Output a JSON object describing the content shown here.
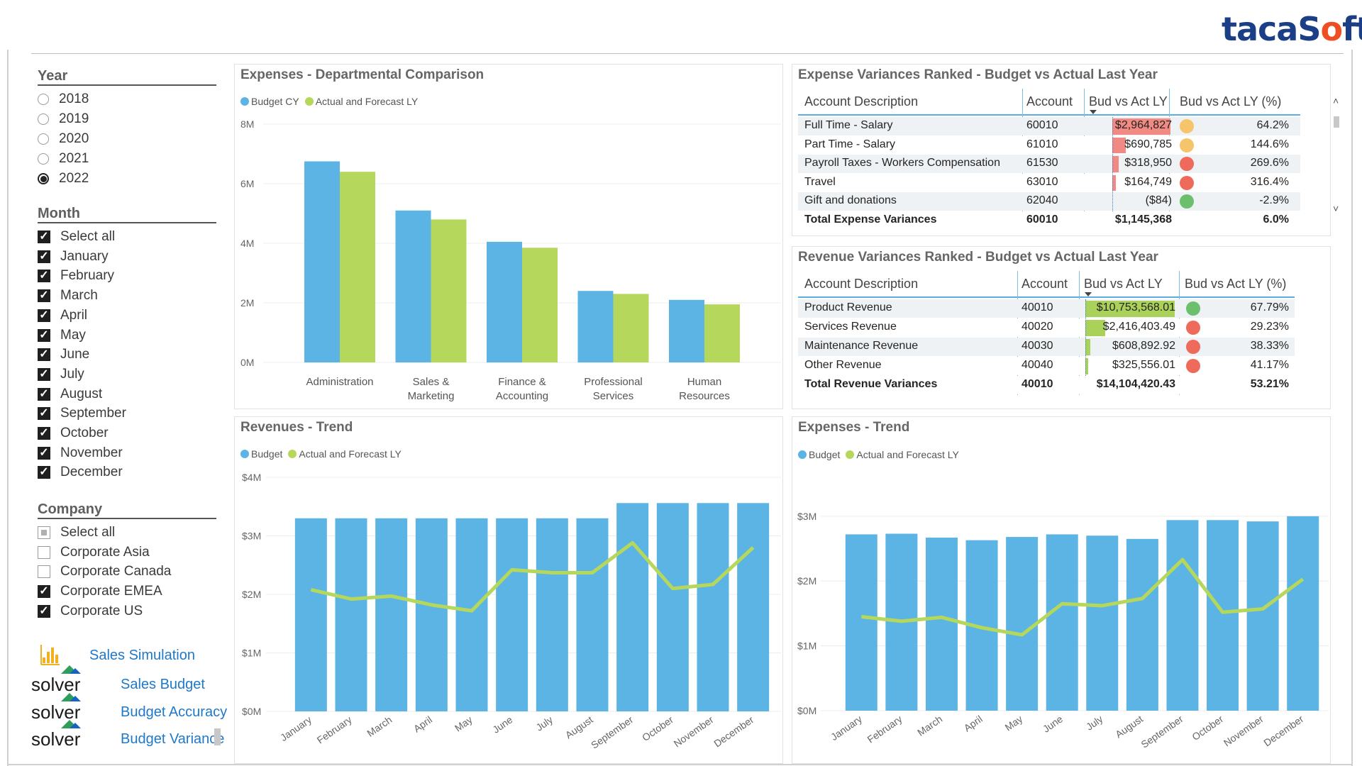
{
  "brand": {
    "logo_prefix": "taca",
    "logo_s": "S",
    "logo_o": "o",
    "logo_suffix": "ft"
  },
  "year_slicer": {
    "title": "Year",
    "options": [
      "2018",
      "2019",
      "2020",
      "2021",
      "2022"
    ],
    "selected": "2022"
  },
  "month_slicer": {
    "title": "Month",
    "options": [
      "Select all",
      "January",
      "February",
      "March",
      "April",
      "May",
      "June",
      "July",
      "August",
      "September",
      "October",
      "November",
      "December"
    ],
    "checked": [
      true,
      true,
      true,
      true,
      true,
      true,
      true,
      true,
      true,
      true,
      true,
      true,
      true
    ]
  },
  "company_slicer": {
    "title": "Company",
    "options": [
      "Select all",
      "Corporate Asia",
      "Corporate Canada",
      "Corporate EMEA",
      "Corporate US"
    ],
    "state": [
      "partial",
      "off",
      "off",
      "on",
      "on"
    ]
  },
  "app_links": [
    {
      "label": "Sales Simulation",
      "icon": "bar-chart-icon"
    },
    {
      "label": "Sales Budget",
      "icon": "solver-logo",
      "brand": "solver"
    },
    {
      "label": "Budget Accuracy",
      "icon": "solver-logo",
      "brand": "solver"
    },
    {
      "label": "Budget Variance",
      "icon": "solver-logo",
      "brand": "solver"
    }
  ],
  "colors": {
    "budget": "#5bb4e4",
    "actual": "#b5d75c",
    "red_bar": "#f08a82",
    "green_bar": "#aad15a",
    "status_red": "#ee6a5a",
    "status_yellow": "#f6c46a",
    "status_green": "#6cbf6c"
  },
  "expense_variances": {
    "title": "Expense Variances Ranked - Budget vs Actual Last Year",
    "headers": [
      "Account Description",
      "Account",
      "Bud vs Act LY",
      "Bud vs Act LY (%)"
    ],
    "rows": [
      {
        "desc": "Full Time - Salary",
        "account": "60010",
        "value": "$2,964,827",
        "pct": "64.2%",
        "status": "yellow",
        "bar": 2964827
      },
      {
        "desc": "Part Time - Salary",
        "account": "61010",
        "value": "$690,785",
        "pct": "144.6%",
        "status": "yellow",
        "bar": 690785
      },
      {
        "desc": "Payroll Taxes - Workers Compensation",
        "account": "61530",
        "value": "$318,950",
        "pct": "269.6%",
        "status": "red",
        "bar": 318950
      },
      {
        "desc": "Travel",
        "account": "63010",
        "value": "$164,749",
        "pct": "316.4%",
        "status": "red",
        "bar": 164749
      },
      {
        "desc": "Gift and donations",
        "account": "62040",
        "value": "($84)",
        "pct": "-2.9%",
        "status": "green",
        "bar": 0
      }
    ],
    "total": {
      "desc": "Total Expense Variances",
      "account": "60010",
      "value": "$1,145,368",
      "pct": "6.0%"
    }
  },
  "revenue_variances": {
    "title": "Revenue Variances Ranked - Budget vs Actual Last Year",
    "headers": [
      "Account Description",
      "Account",
      "Bud vs Act LY",
      "Bud vs Act LY (%)"
    ],
    "rows": [
      {
        "desc": "Product Revenue",
        "account": "40010",
        "value": "$10,753,568.01",
        "pct": "67.79%",
        "status": "green",
        "bar": 10753568
      },
      {
        "desc": "Services Revenue",
        "account": "40020",
        "value": "$2,416,403.49",
        "pct": "29.23%",
        "status": "red",
        "bar": 2416403
      },
      {
        "desc": "Maintenance Revenue",
        "account": "40030",
        "value": "$608,892.92",
        "pct": "38.33%",
        "status": "red",
        "bar": 608893
      },
      {
        "desc": "Other Revenue",
        "account": "40040",
        "value": "$325,556.01",
        "pct": "41.17%",
        "status": "red",
        "bar": 325556
      }
    ],
    "total": {
      "desc": "Total Revenue Variances",
      "account": "40010",
      "value": "$14,104,420.43",
      "pct": "53.21%"
    }
  },
  "chart_data": [
    {
      "id": "dept",
      "type": "bar",
      "title": "Expenses - Departmental Comparison",
      "legend": [
        "Budget CY",
        "Actual and Forecast LY"
      ],
      "categories": [
        [
          "Administration"
        ],
        [
          "Sales &",
          "Marketing"
        ],
        [
          "Finance &",
          "Accounting"
        ],
        [
          "Professional",
          "Services"
        ],
        [
          "Human",
          "Resources"
        ]
      ],
      "series": [
        {
          "name": "Budget CY",
          "values": [
            6.75,
            5.1,
            4.05,
            2.4,
            2.1
          ]
        },
        {
          "name": "Actual and Forecast LY",
          "values": [
            6.4,
            4.8,
            3.85,
            2.3,
            1.95
          ]
        }
      ],
      "ylim": [
        0,
        8
      ],
      "yticks": [
        0,
        2,
        4,
        6,
        8
      ],
      "ytick_labels": [
        "0M",
        "2M",
        "4M",
        "6M",
        "8M"
      ]
    },
    {
      "id": "rev",
      "type": "bar",
      "title": "Revenues - Trend",
      "legend": [
        "Budget",
        "Actual and Forecast LY"
      ],
      "categories": [
        "January",
        "February",
        "March",
        "April",
        "May",
        "June",
        "July",
        "August",
        "September",
        "October",
        "November",
        "December"
      ],
      "series": [
        {
          "name": "Budget",
          "kind": "bar",
          "values": [
            3.3,
            3.3,
            3.3,
            3.3,
            3.3,
            3.3,
            3.3,
            3.3,
            3.56,
            3.56,
            3.56,
            3.56
          ]
        },
        {
          "name": "Actual and Forecast LY",
          "kind": "line",
          "values": [
            2.08,
            1.92,
            1.97,
            1.82,
            1.72,
            2.42,
            2.37,
            2.37,
            2.88,
            2.1,
            2.17,
            2.8
          ]
        }
      ],
      "ylim": [
        0,
        4
      ],
      "yticks": [
        0,
        1,
        2,
        3,
        4
      ],
      "ytick_labels": [
        "$0M",
        "$1M",
        "$2M",
        "$3M",
        "$4M"
      ]
    },
    {
      "id": "exp",
      "type": "bar",
      "title": "Expenses - Trend",
      "legend": [
        "Budget",
        "Actual and Forecast LY"
      ],
      "categories": [
        "January",
        "February",
        "March",
        "April",
        "May",
        "June",
        "July",
        "August",
        "September",
        "October",
        "November",
        "December"
      ],
      "series": [
        {
          "name": "Budget",
          "kind": "bar",
          "values": [
            2.72,
            2.73,
            2.67,
            2.63,
            2.68,
            2.72,
            2.7,
            2.65,
            2.94,
            2.94,
            2.92,
            3.0
          ]
        },
        {
          "name": "Actual and Forecast LY",
          "kind": "line",
          "values": [
            1.45,
            1.38,
            1.44,
            1.28,
            1.17,
            1.65,
            1.62,
            1.73,
            2.33,
            1.52,
            1.57,
            2.03
          ]
        }
      ],
      "ylim": [
        0,
        3.6
      ],
      "yticks": [
        0,
        1,
        2,
        3
      ],
      "ytick_labels": [
        "$0M",
        "$1M",
        "$2M",
        "$3M"
      ]
    }
  ]
}
